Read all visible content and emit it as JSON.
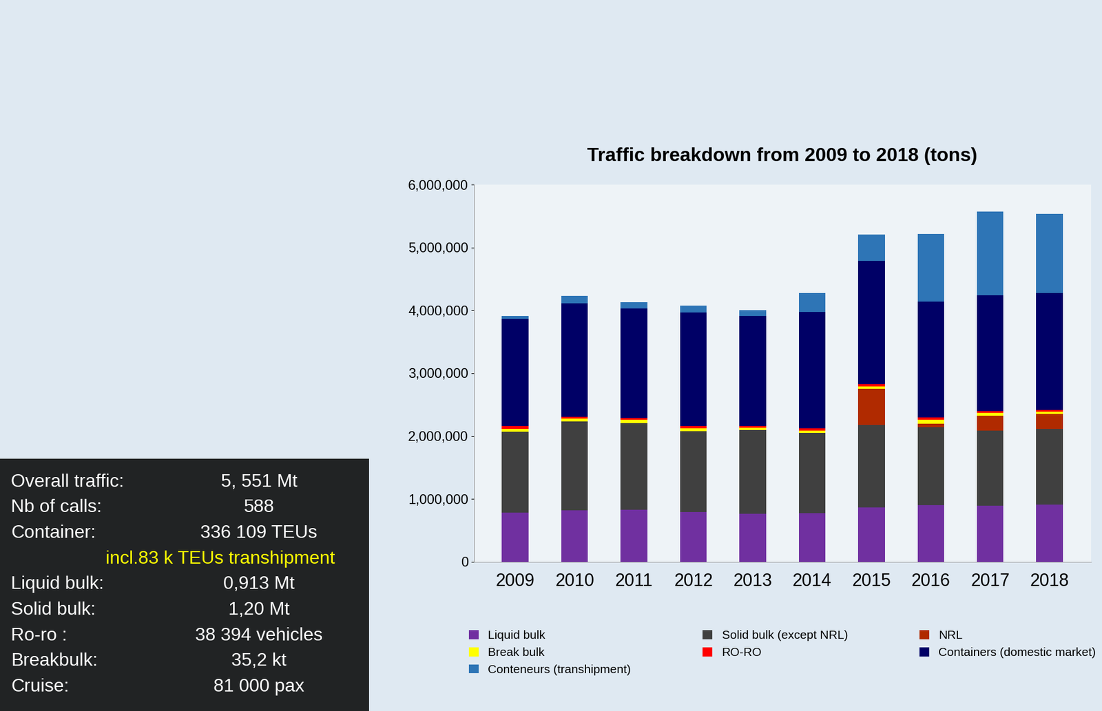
{
  "chart_data": {
    "type": "bar",
    "stacked": true,
    "title": "Traffic breakdown from 2009 to 2018 (tons)",
    "categories": [
      "2009",
      "2010",
      "2011",
      "2012",
      "2013",
      "2014",
      "2015",
      "2016",
      "2017",
      "2018"
    ],
    "series": [
      {
        "name": "Liquid bulk",
        "color": "#7030a0",
        "values": [
          786000,
          820000,
          830000,
          790000,
          760000,
          770000,
          860000,
          900000,
          890000,
          913000
        ]
      },
      {
        "name": "Solid bulk (except NRL)",
        "color": "#404040",
        "values": [
          1280000,
          1410000,
          1380000,
          1290000,
          1340000,
          1280000,
          1320000,
          1240000,
          1200000,
          1200000
        ]
      },
      {
        "name": "NRL",
        "color": "#b02a00",
        "values": [
          0,
          0,
          0,
          0,
          0,
          0,
          570000,
          60000,
          230000,
          240000
        ]
      },
      {
        "name": "Break bulk",
        "color": "#ffff00",
        "values": [
          50000,
          50000,
          50000,
          40000,
          30000,
          40000,
          40000,
          60000,
          50000,
          35200
        ]
      },
      {
        "name": "RO-RO",
        "color": "#ff0000",
        "values": [
          40000,
          30000,
          30000,
          40000,
          30000,
          30000,
          40000,
          40000,
          30000,
          30000
        ]
      },
      {
        "name": "Containers (domestic market)",
        "color": "#000066",
        "values": [
          1710000,
          1800000,
          1740000,
          1810000,
          1750000,
          1860000,
          1960000,
          1840000,
          1840000,
          1860000
        ]
      },
      {
        "name": "Conteneurs (transhipment)",
        "color": "#2e75b6",
        "values": [
          50000,
          120000,
          100000,
          110000,
          90000,
          300000,
          420000,
          1080000,
          1330000,
          1260000
        ]
      }
    ],
    "ylim": [
      0,
      6000000
    ],
    "yticks": [
      0,
      {
        "value": 1000000,
        "label": "1,000,000"
      },
      {
        "value": 2000000,
        "label": "2,000,000"
      },
      {
        "value": 3000000,
        "label": "3,000,000"
      },
      {
        "value": 4000000,
        "label": "4,000,000"
      },
      {
        "value": 5000000,
        "label": "5,000,000"
      },
      {
        "value": 6000000,
        "label": "6,000,000"
      }
    ],
    "grid": false,
    "legend": "lower center"
  },
  "key_figures": [
    {
      "label": "Overall traffic:",
      "value": "5, 551 Mt"
    },
    {
      "label": "Nb of calls:",
      "value": "588"
    },
    {
      "label": "Container:",
      "value": "336 109 TEUs"
    },
    {
      "label": null,
      "value": "incl.83 k TEUs transhipment"
    },
    {
      "label": "Liquid bulk:",
      "value": "0,913 Mt"
    },
    {
      "label": "Solid bulk:",
      "value": "1,20 Mt"
    },
    {
      "label": "Ro-ro :",
      "value": "38 394 vehicles"
    },
    {
      "label": "Breakbulk:",
      "value": "35,2 kt"
    },
    {
      "label": "Cruise:",
      "value": "81 000 pax"
    }
  ]
}
